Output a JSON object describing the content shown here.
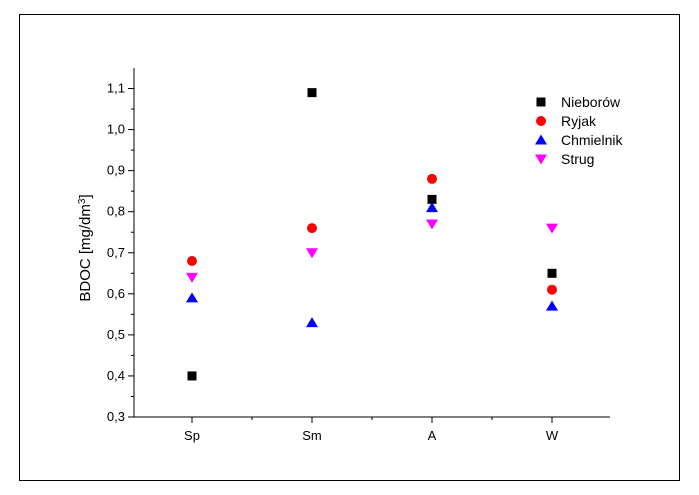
{
  "chart_data": {
    "type": "scatter",
    "categories": [
      "Sp",
      "Sm",
      "A",
      "W"
    ],
    "ylabel_main": "BDOC [mg/dm",
    "ylabel_sup": "3",
    "ylabel_end": "]",
    "ylim": [
      0.3,
      1.15
    ],
    "yticks": [
      "0,3",
      "0,4",
      "0,5",
      "0,6",
      "0,7",
      "0,8",
      "0,9",
      "1,0",
      "1,1"
    ],
    "ytick_values": [
      0.3,
      0.4,
      0.5,
      0.6,
      0.7,
      0.8,
      0.9,
      1.0,
      1.1
    ],
    "legend_position": "top-right",
    "series": [
      {
        "name": "Nieborów",
        "marker": "square",
        "color": "#000000",
        "values": [
          0.4,
          1.09,
          0.83,
          0.65
        ]
      },
      {
        "name": "Ryjak",
        "marker": "circle",
        "color": "#ff0000",
        "values": [
          0.68,
          0.76,
          0.88,
          0.61
        ]
      },
      {
        "name": "Chmielnik",
        "marker": "triangle-up",
        "color": "#0000ff",
        "values": [
          0.59,
          0.53,
          0.81,
          0.57
        ]
      },
      {
        "name": "Strug",
        "marker": "triangle-down",
        "color": "#ff00ff",
        "values": [
          0.64,
          0.7,
          0.77,
          0.76
        ]
      }
    ]
  }
}
